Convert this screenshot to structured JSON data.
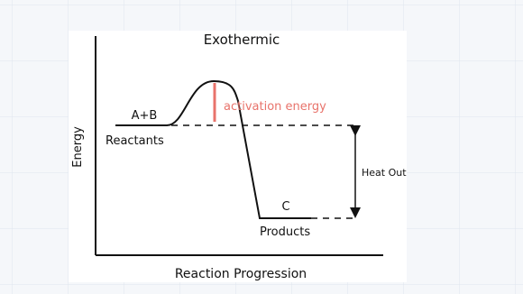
{
  "title": "Exothermic",
  "y_axis_label": "Energy",
  "x_axis_label": "Reaction Progression",
  "reactants": {
    "formula": "A+B",
    "label": "Reactants"
  },
  "products": {
    "formula": "C",
    "label": "Products"
  },
  "activation_label": "activation energy",
  "heat_label": "Heat Out"
}
